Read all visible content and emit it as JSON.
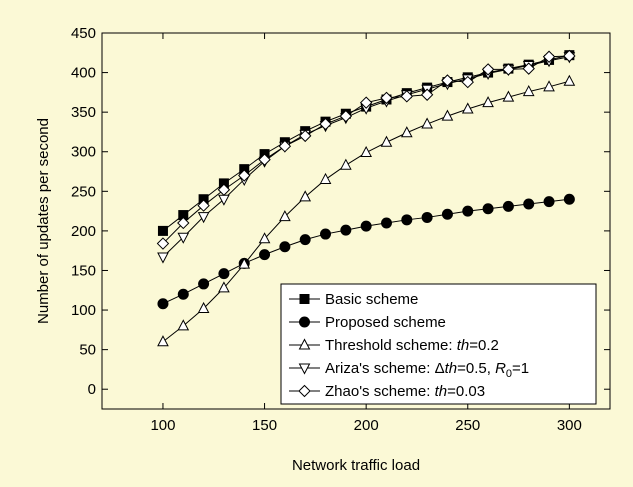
{
  "chart_data": {
    "type": "line",
    "title": "",
    "xlabel": "Network traffic load",
    "ylabel": "Number of updates per second",
    "xlim": [
      70,
      320
    ],
    "ylim": [
      -25,
      450
    ],
    "xticks": [
      100,
      150,
      200,
      250,
      300
    ],
    "yticks": [
      0,
      50,
      100,
      150,
      200,
      250,
      300,
      350,
      400,
      450
    ],
    "grid": false,
    "legend_position": "bottom-right",
    "x": [
      100,
      110,
      120,
      130,
      140,
      150,
      160,
      170,
      180,
      190,
      200,
      210,
      220,
      230,
      240,
      250,
      260,
      270,
      280,
      290,
      300
    ],
    "series": [
      {
        "name": "Basic scheme",
        "marker": "filled-square",
        "values": [
          200,
          220,
          240,
          260,
          278,
          297,
          312,
          326,
          338,
          348,
          357,
          366,
          374,
          381,
          388,
          394,
          400,
          405,
          410,
          416,
          422
        ]
      },
      {
        "name": "Proposed scheme",
        "marker": "filled-circle",
        "values": [
          108,
          120,
          133,
          146,
          159,
          170,
          180,
          189,
          196,
          201,
          206,
          210,
          214,
          217,
          221,
          225,
          228,
          231,
          234,
          237,
          240
        ]
      },
      {
        "name": "Threshold scheme: th=0.2",
        "marker": "open-triangle-up",
        "values": [
          60,
          80,
          102,
          128,
          158,
          190,
          218,
          243,
          265,
          283,
          299,
          312,
          324,
          335,
          345,
          354,
          362,
          369,
          376,
          382,
          389
        ]
      },
      {
        "name": "Ariza's scheme: Δth=0.5, R0=1",
        "marker": "open-triangle-down",
        "values": [
          167,
          192,
          218,
          240,
          265,
          288,
          307,
          322,
          333,
          343,
          355,
          364,
          372,
          379,
          386,
          392,
          399,
          404,
          409,
          415,
          420
        ]
      },
      {
        "name": "Zhao's scheme: th=0.03",
        "marker": "open-diamond",
        "values": [
          184,
          210,
          232,
          252,
          270,
          290,
          307,
          320,
          335,
          345,
          362,
          368,
          370,
          372,
          390,
          388,
          404,
          404,
          405,
          420,
          421
        ]
      }
    ],
    "legend_labels": [
      {
        "plain": "Basic scheme"
      },
      {
        "plain": "Proposed scheme"
      },
      {
        "pre": "Threshold scheme: ",
        "italic": "th",
        "post": "=0.2"
      },
      {
        "pre": "Ariza's scheme: Δ",
        "italic": "th",
        "mid": "=0.5, ",
        "italic2": "R",
        "sub": "0",
        "post": "=1"
      },
      {
        "pre": "Zhao's scheme: ",
        "italic": "th",
        "post": "=0.03"
      }
    ]
  }
}
